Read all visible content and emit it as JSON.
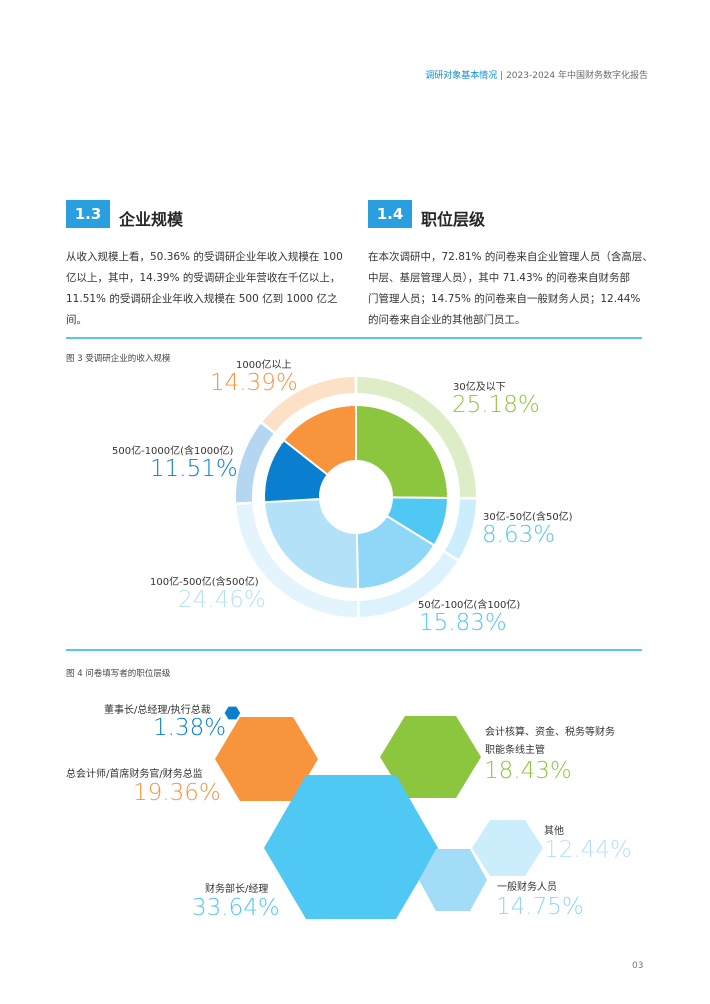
{
  "header": {
    "section": "调研对象基本情况",
    "sep": " | ",
    "report": "2023-2024 年中国财务数字化报告"
  },
  "sec13": {
    "num": "1.3",
    "title": "企业规模",
    "lines": [
      "从收入规模上看，50.36% 的受调研企业年收入规模在 100",
      "亿以上，其中，14.39% 的受调研企业年营收在千亿以上，",
      "11.51% 的受调研企业年收入规模在 500 亿到 1000 亿之间。"
    ]
  },
  "sec14": {
    "num": "1.4",
    "title": "职位层级",
    "lines": [
      "在本次调研中，72.81% 的问卷来自企业管理人员（含高层、",
      "中层、基层管理人员），其中 71.43% 的问卷来自财务部",
      "门管理人员；14.75% 的问卷来自一般财务人员；12.44%",
      "的问卷来自企业的其他部门员工。"
    ]
  },
  "fig3": {
    "caption": "图 3 受调研企业的收入规模"
  },
  "fig4": {
    "caption": "图 4 问卷填写者的职位层级"
  },
  "page_number": "03",
  "chart_data": [
    {
      "type": "pie",
      "title": "图 3 受调研企业的收入规模",
      "slices": [
        {
          "label": "30亿及以下",
          "value": 25.18,
          "text": "25.18%",
          "color": "#8cc63f",
          "outer": "#dcedc8"
        },
        {
          "label": "30亿-50亿(含50亿)",
          "value": 8.63,
          "text": "8.63%",
          "color": "#4fc8f3",
          "outer": "#cceefc"
        },
        {
          "label": "50亿-100亿(含100亿)",
          "value": 15.83,
          "text": "15.83%",
          "color": "#8fd7f7",
          "outer": "#dcf2fd"
        },
        {
          "label": "100亿-500亿(含500亿)",
          "value": 24.46,
          "text": "24.46%",
          "color": "#b3e1f7",
          "outer": "#e3f4fc"
        },
        {
          "label": "500亿-1000亿(含1000亿)",
          "value": 11.51,
          "text": "11.51%",
          "color": "#0a7fd0",
          "outer": "#b5d6f1"
        },
        {
          "label": "1000亿以上",
          "value": 14.39,
          "text": "14.39%",
          "color": "#f7943c",
          "outer": "#fde1c6"
        }
      ]
    },
    {
      "type": "bubble",
      "title": "图 4 问卷填写者的职位层级",
      "items": [
        {
          "label": "董事长/总经理/执行总裁",
          "value": 1.38,
          "text": "1.38%",
          "color": "#0a7fd0"
        },
        {
          "label": "总会计师/首席财务官/财务总监",
          "value": 19.36,
          "text": "19.36%",
          "color": "#f7943c"
        },
        {
          "label": "会计核算、资金、税务等财务",
          "label2": "职能条线主管",
          "value": 18.43,
          "text": "18.43%",
          "color": "#8cc63f"
        },
        {
          "label": "财务部长/经理",
          "value": 33.64,
          "text": "33.64%",
          "color": "#4fc8f3"
        },
        {
          "label": "其他",
          "value": 12.44,
          "text": "12.44%",
          "color": "#b3e1f7"
        },
        {
          "label": "一般财务人员",
          "value": 14.75,
          "text": "14.75%",
          "color": "#8fd7f7"
        }
      ]
    }
  ]
}
